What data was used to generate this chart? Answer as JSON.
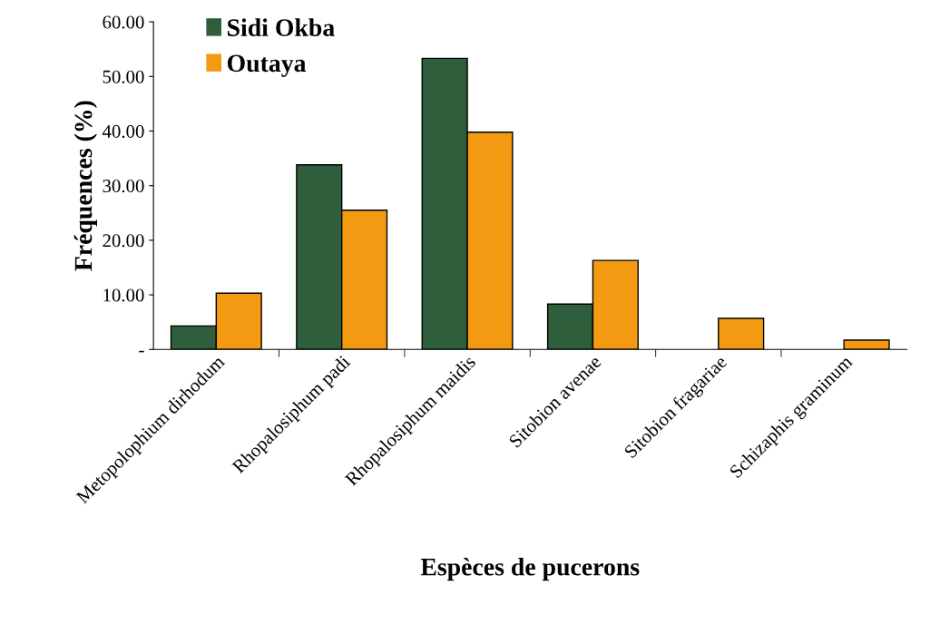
{
  "chart_data": {
    "type": "bar",
    "xlabel": "Espèces de pucerons",
    "ylabel": "Fréquences (%)",
    "categories": [
      "Metopolophium dirhodum",
      "Rhopalosiphum padi",
      "Rhopalosiphum maidis",
      "Sitobion avenae",
      "Sitobion fragariae",
      "Schizaphis graminum"
    ],
    "series": [
      {
        "name": "Sidi Okba",
        "color": "#2f5e3c",
        "values": [
          4.3,
          33.8,
          53.3,
          8.3,
          0,
          0
        ]
      },
      {
        "name": "Outaya",
        "color": "#f39a12",
        "values": [
          10.3,
          25.5,
          39.8,
          16.3,
          5.7,
          1.7
        ]
      }
    ],
    "ylim": [
      0,
      60
    ],
    "yticks": [
      {
        "value": 0,
        "label": "-"
      },
      {
        "value": 10,
        "label": "10.00"
      },
      {
        "value": 20,
        "label": "20.00"
      },
      {
        "value": 30,
        "label": "30.00"
      },
      {
        "value": 40,
        "label": "40.00"
      },
      {
        "value": 50,
        "label": "50.00"
      },
      {
        "value": 60,
        "label": "60.00"
      }
    ],
    "grid": false,
    "legend": "top left"
  }
}
